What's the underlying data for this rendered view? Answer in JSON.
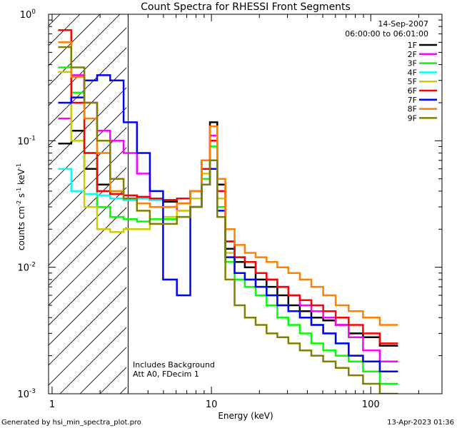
{
  "chart_data": {
    "type": "line",
    "title": "Count Spectra for RHESSI Front Segments",
    "xlabel": "Energy (keV)",
    "ylabel": "counts cm",
    "ylabel_sup1": "-2",
    "ylabel_mid": " s",
    "ylabel_sup2": "-1",
    "ylabel_end": " keV",
    "ylabel_sup3": "-1",
    "x_scale": "log",
    "y_scale": "log",
    "xlim": [
      0.95,
      280
    ],
    "ylim": [
      0.001,
      1.0
    ],
    "x_ticks": [
      {
        "value": 1,
        "label": "1"
      },
      {
        "value": 10,
        "label": "10"
      },
      {
        "value": 100,
        "label": "100"
      }
    ],
    "y_ticks": [
      {
        "value": 1.0,
        "base": "10",
        "exp": "0"
      },
      {
        "value": 0.1,
        "base": "10",
        "exp": "-1"
      },
      {
        "value": 0.01,
        "base": "10",
        "exp": "-2"
      },
      {
        "value": 0.001,
        "base": "10",
        "exp": "-3"
      }
    ],
    "hatched_region": {
      "x": [
        0.95,
        3.0
      ]
    },
    "legend": {
      "position": "top-right",
      "date": "14-Sep-2007",
      "time_range": "06:00:00 to 06:01:00"
    },
    "annotations": [
      "Includes Background",
      "Att A0, FDecim 1"
    ],
    "footer_left": "Generated by hsi_min_spectra_plot.pro",
    "footer_right": "13-Apr-2023 01:36",
    "series": [
      {
        "name": "1F",
        "color": "#000000",
        "values": [
          0.095,
          0.12,
          0.06,
          0.045,
          0.035,
          0.034,
          0.036,
          0.034,
          0.033,
          0.032,
          0.04,
          0.07,
          0.14,
          0.045,
          0.014,
          0.011,
          0.01,
          0.008,
          0.007,
          0.006,
          0.005,
          0.0045,
          0.004,
          0.0038,
          0.0035,
          0.003,
          0.0028,
          0.0024
        ]
      },
      {
        "name": "2F",
        "color": "#ff00ff",
        "values": [
          0.15,
          0.33,
          0.2,
          0.12,
          0.1,
          0.08,
          0.055,
          0.035,
          0.03,
          0.028,
          0.03,
          0.06,
          0.11,
          0.04,
          0.016,
          0.012,
          0.011,
          0.009,
          0.008,
          0.007,
          0.006,
          0.005,
          0.0045,
          0.004,
          0.0035,
          0.0028,
          0.0022,
          0.0018
        ]
      },
      {
        "name": "3F",
        "color": "#00ff00",
        "values": [
          0.38,
          0.24,
          0.08,
          0.03,
          0.025,
          0.024,
          0.023,
          0.024,
          0.024,
          0.025,
          0.03,
          0.05,
          0.09,
          0.03,
          0.011,
          0.008,
          0.007,
          0.006,
          0.005,
          0.004,
          0.0035,
          0.003,
          0.0025,
          0.0022,
          0.002,
          0.0018,
          0.0015,
          0.0012
        ]
      },
      {
        "name": "4F",
        "color": "#00ffff",
        "values": [
          0.06,
          0.04,
          0.038,
          0.037,
          0.035,
          0.034,
          0.035,
          0.034,
          0.034,
          0.035,
          0.04,
          0.06,
          0.1,
          0.035,
          0.012,
          0.009,
          0.008,
          0.007,
          0.006,
          0.005,
          0.0045,
          0.004,
          0.0035,
          0.003,
          0.0025,
          0.002,
          0.0018,
          0.0015
        ]
      },
      {
        "name": "5F",
        "color": "#cccc00",
        "values": [
          0.35,
          0.1,
          0.03,
          0.02,
          0.019,
          0.02,
          0.02,
          0.022,
          0.025,
          0.028,
          0.035,
          0.055,
          0.1,
          0.035,
          0.013,
          0.009,
          0.008,
          0.007,
          0.006,
          0.005,
          0.0045,
          0.004,
          0.0035,
          0.003,
          0.0025,
          0.002,
          0.0018,
          0.0015
        ]
      },
      {
        "name": "6F",
        "color": "#ff0000",
        "values": [
          0.75,
          0.2,
          0.08,
          0.04,
          0.038,
          0.037,
          0.036,
          0.035,
          0.034,
          0.035,
          0.04,
          0.06,
          0.1,
          0.04,
          0.016,
          0.012,
          0.011,
          0.009,
          0.008,
          0.007,
          0.006,
          0.0055,
          0.005,
          0.0045,
          0.004,
          0.0035,
          0.003,
          0.0025
        ]
      },
      {
        "name": "7F",
        "color": "#0000ff",
        "values": [
          0.2,
          0.22,
          0.3,
          0.33,
          0.3,
          0.14,
          0.08,
          0.04,
          0.008,
          0.006,
          0.03,
          0.045,
          0.06,
          0.028,
          0.012,
          0.009,
          0.008,
          0.007,
          0.006,
          0.005,
          0.0045,
          0.004,
          0.0035,
          0.003,
          0.0025,
          0.002,
          0.0018,
          0.0015
        ]
      },
      {
        "name": "8F",
        "color": "#ff8000",
        "values": [
          0.6,
          0.32,
          0.15,
          0.08,
          0.04,
          0.035,
          0.032,
          0.03,
          0.03,
          0.032,
          0.04,
          0.07,
          0.13,
          0.05,
          0.02,
          0.015,
          0.013,
          0.012,
          0.011,
          0.01,
          0.009,
          0.008,
          0.007,
          0.006,
          0.005,
          0.0045,
          0.004,
          0.0035
        ]
      },
      {
        "name": "9F",
        "color": "#808000",
        "values": [
          0.55,
          0.38,
          0.2,
          0.1,
          0.05,
          0.035,
          0.028,
          0.022,
          0.022,
          0.025,
          0.03,
          0.045,
          0.07,
          0.025,
          0.008,
          0.005,
          0.004,
          0.0035,
          0.003,
          0.0028,
          0.0025,
          0.0022,
          0.002,
          0.0018,
          0.0016,
          0.0014,
          0.0012,
          0.001
        ]
      }
    ],
    "x": [
      1.2,
      1.45,
      1.75,
      2.1,
      2.55,
      3.1,
      3.75,
      4.5,
      5.5,
      6.7,
      8.1,
      9.3,
      10.3,
      11.5,
      13.0,
      15.0,
      17.5,
      20.5,
      24.0,
      28.0,
      33.0,
      39.0,
      46.0,
      55.0,
      66.0,
      80.0,
      100.0,
      130.0
    ]
  }
}
